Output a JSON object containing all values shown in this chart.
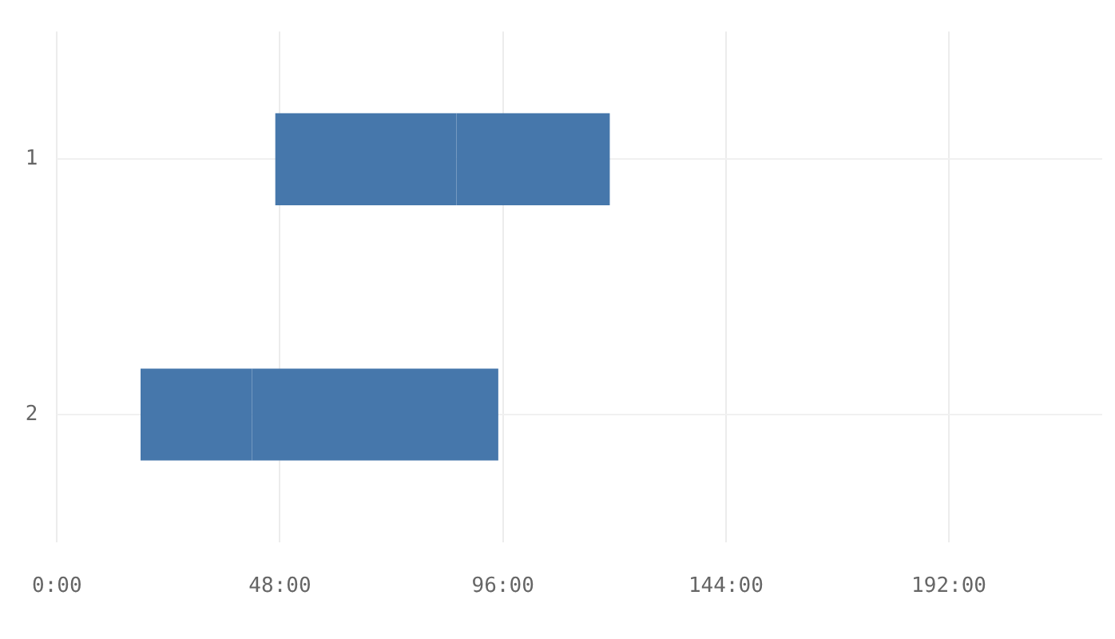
{
  "chart_data": {
    "type": "bar",
    "orientation": "horizontal",
    "categories": [
      "1",
      "2"
    ],
    "series": [
      {
        "color": "#4677ab",
        "base": [
          47,
          18
        ],
        "values": [
          39,
          24
        ]
      },
      {
        "color": "#4677ab",
        "base": [
          86,
          42
        ],
        "values": [
          33,
          53
        ]
      }
    ],
    "xlim": [
      0,
      225
    ],
    "xticks": [
      {
        "value": 0,
        "label": "0:00"
      },
      {
        "value": 48,
        "label": "48:00"
      },
      {
        "value": 96,
        "label": "96:00"
      },
      {
        "value": 144,
        "label": "144:00"
      },
      {
        "value": 192,
        "label": "192:00"
      }
    ],
    "grid": true,
    "legend": false
  }
}
